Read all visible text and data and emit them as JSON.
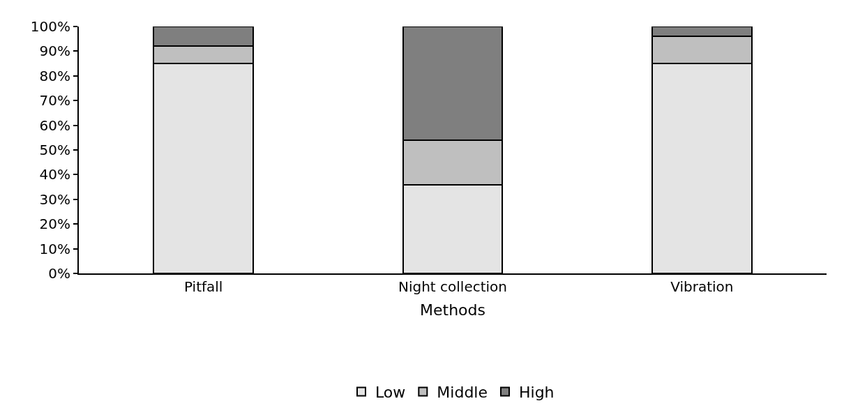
{
  "chart_data": {
    "type": "bar",
    "stacked": true,
    "xlabel": "Methods",
    "categories": [
      "Pitfall",
      "Night collection",
      "Vibration"
    ],
    "series": [
      {
        "name": "Low",
        "color": "#e4e4e4",
        "values": [
          85,
          36,
          85
        ]
      },
      {
        "name": "Middle",
        "color": "#bfbfbf",
        "values": [
          7,
          18,
          11
        ]
      },
      {
        "name": "High",
        "color": "#7f7f7f",
        "values": [
          8,
          46,
          4
        ]
      }
    ],
    "ylim": [
      0,
      100
    ],
    "yticks": [
      {
        "value": 0,
        "label": "0%"
      },
      {
        "value": 10,
        "label": "10%"
      },
      {
        "value": 20,
        "label": "20%"
      },
      {
        "value": 30,
        "label": "30%"
      },
      {
        "value": 40,
        "label": "40%"
      },
      {
        "value": 50,
        "label": "50%"
      },
      {
        "value": 60,
        "label": "60%"
      },
      {
        "value": 70,
        "label": "70%"
      },
      {
        "value": 80,
        "label": "80%"
      },
      {
        "value": 90,
        "label": "90%"
      },
      {
        "value": 100,
        "label": "100%"
      }
    ],
    "legend": "bottom"
  }
}
